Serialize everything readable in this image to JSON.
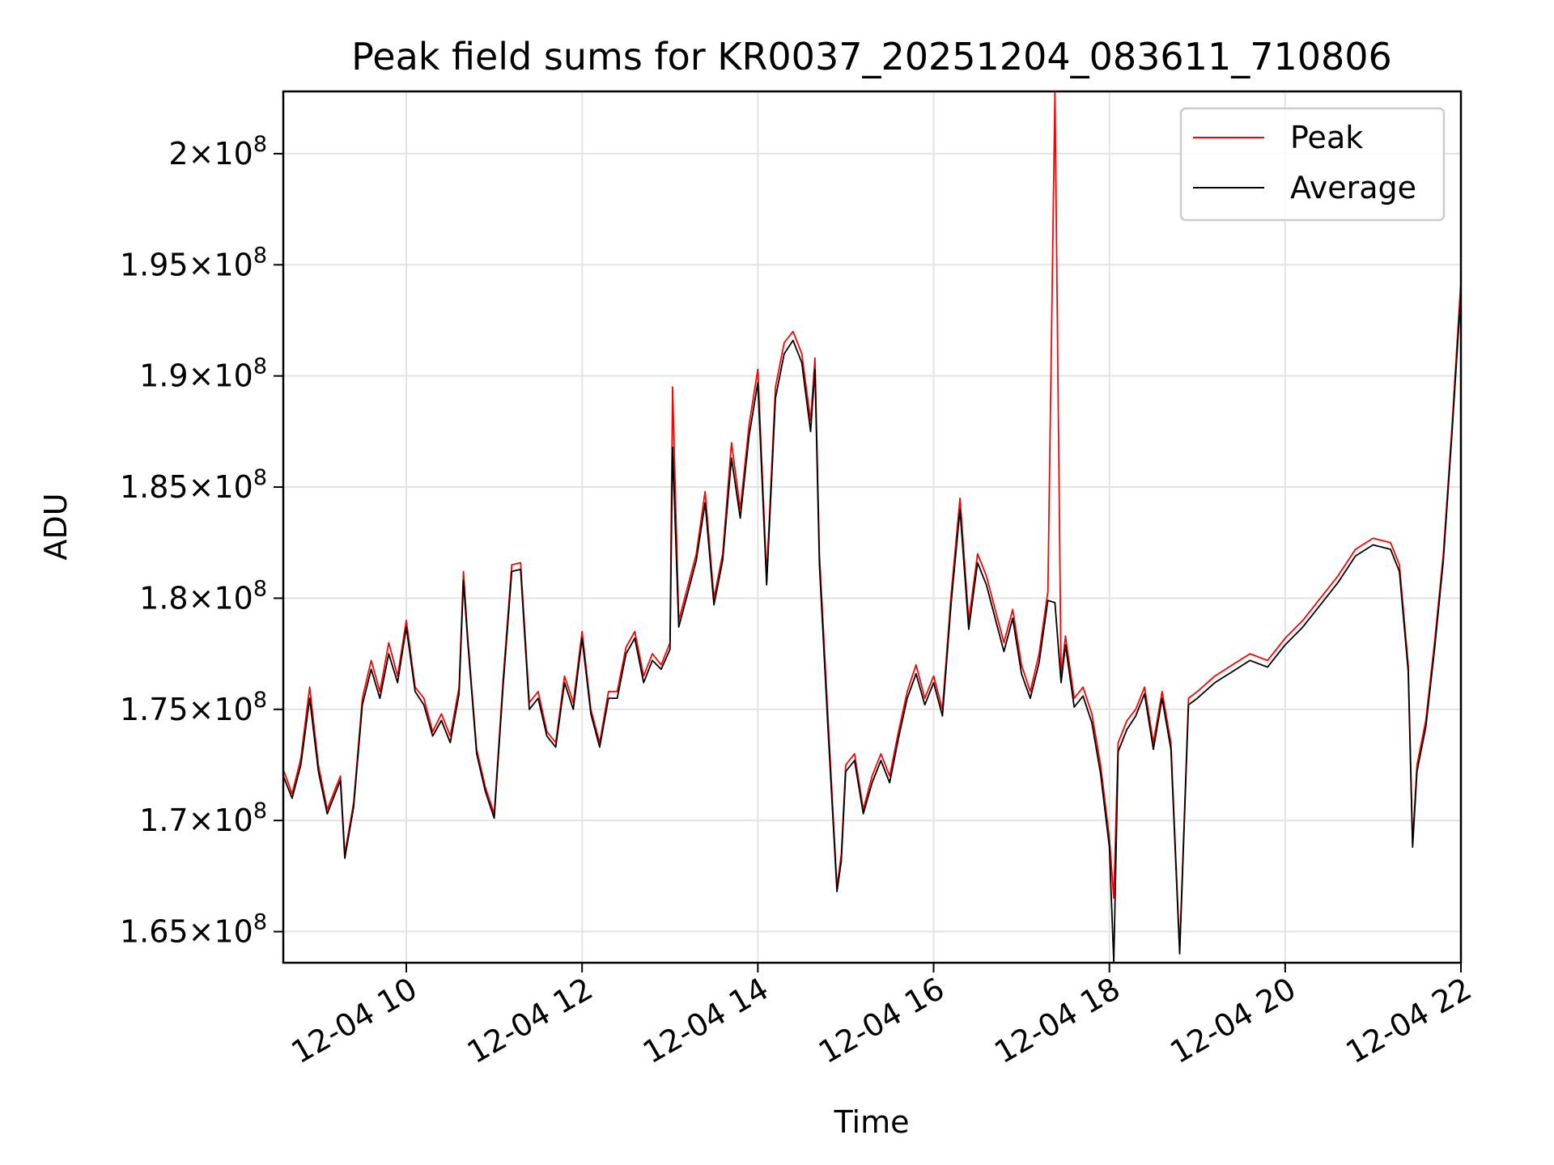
{
  "chart_data": {
    "type": "line",
    "title": "Peak field sums for KR0037_20251204_083611_710806",
    "xlabel": "Time",
    "ylabel": "ADU",
    "grid": true,
    "legend_loc": "upper right",
    "xlim_hours": [
      8.6,
      22.0
    ],
    "ylim": [
      163600000,
      202800000
    ],
    "x_ticks": [
      {
        "hour": 10,
        "label": "12-04 10"
      },
      {
        "hour": 12,
        "label": "12-04 12"
      },
      {
        "hour": 14,
        "label": "12-04 14"
      },
      {
        "hour": 16,
        "label": "12-04 16"
      },
      {
        "hour": 18,
        "label": "12-04 18"
      },
      {
        "hour": 20,
        "label": "12-04 20"
      },
      {
        "hour": 22,
        "label": "12-04 22"
      }
    ],
    "y_ticks": [
      {
        "value": 165000000,
        "mant": "1.65",
        "exp": "8"
      },
      {
        "value": 170000000,
        "mant": "1.7",
        "exp": "8"
      },
      {
        "value": 175000000,
        "mant": "1.75",
        "exp": "8"
      },
      {
        "value": 180000000,
        "mant": "1.8",
        "exp": "8"
      },
      {
        "value": 185000000,
        "mant": "1.85",
        "exp": "8"
      },
      {
        "value": 190000000,
        "mant": "1.9",
        "exp": "8"
      },
      {
        "value": 195000000,
        "mant": "1.95",
        "exp": "8"
      },
      {
        "value": 200000000,
        "mant": "2",
        "exp": "8"
      }
    ],
    "series": [
      {
        "name": "Peak",
        "color": "#ff0000",
        "x": [
          8.6,
          8.7,
          8.8,
          8.9,
          9.0,
          9.1,
          9.2,
          9.25,
          9.3,
          9.4,
          9.5,
          9.6,
          9.7,
          9.8,
          9.9,
          10.0,
          10.1,
          10.2,
          10.3,
          10.4,
          10.5,
          10.6,
          10.65,
          10.7,
          10.8,
          10.9,
          11.0,
          11.1,
          11.2,
          11.3,
          11.4,
          11.5,
          11.6,
          11.7,
          11.8,
          11.9,
          12.0,
          12.1,
          12.2,
          12.3,
          12.4,
          12.5,
          12.6,
          12.7,
          12.8,
          12.9,
          13.0,
          13.03,
          13.1,
          13.2,
          13.3,
          13.4,
          13.5,
          13.6,
          13.7,
          13.8,
          13.9,
          14.0,
          14.1,
          14.2,
          14.3,
          14.4,
          14.5,
          14.6,
          14.65,
          14.7,
          14.8,
          14.9,
          14.95,
          15.0,
          15.1,
          15.2,
          15.3,
          15.4,
          15.5,
          15.6,
          15.7,
          15.8,
          15.9,
          16.0,
          16.1,
          16.2,
          16.3,
          16.4,
          16.5,
          16.6,
          16.7,
          16.8,
          16.9,
          17.0,
          17.1,
          17.2,
          17.3,
          17.38,
          17.45,
          17.5,
          17.6,
          17.7,
          17.8,
          17.9,
          18.0,
          18.05,
          18.1,
          18.2,
          18.3,
          18.4,
          18.5,
          18.6,
          18.7,
          18.8,
          18.9,
          19.0,
          19.2,
          19.4,
          19.6,
          19.8,
          20.0,
          20.2,
          20.4,
          20.6,
          20.8,
          21.0,
          21.2,
          21.3,
          21.4,
          21.45,
          21.5,
          21.6,
          21.7,
          21.8,
          21.9,
          22.0
        ],
        "y": [
          172300000,
          171200000,
          172800000,
          176000000,
          172500000,
          170500000,
          171500000,
          172000000,
          168500000,
          170800000,
          175500000,
          177200000,
          175800000,
          178000000,
          176500000,
          179000000,
          176000000,
          175500000,
          174000000,
          174800000,
          173800000,
          176000000,
          181200000,
          178200000,
          173200000,
          171500000,
          170300000,
          176300000,
          181500000,
          181600000,
          175300000,
          175800000,
          174000000,
          173500000,
          176500000,
          175300000,
          178500000,
          175000000,
          173500000,
          175800000,
          175800000,
          177800000,
          178500000,
          176500000,
          177500000,
          177000000,
          178000000,
          189500000,
          179000000,
          180500000,
          182000000,
          184800000,
          180000000,
          182000000,
          187000000,
          184000000,
          187800000,
          190300000,
          181000000,
          189500000,
          191500000,
          192000000,
          191000000,
          188000000,
          190800000,
          182000000,
          174500000,
          167000000,
          168500000,
          172500000,
          173000000,
          170500000,
          172000000,
          173000000,
          172000000,
          174000000,
          175800000,
          177000000,
          175500000,
          176500000,
          175000000,
          180200000,
          184500000,
          179000000,
          182000000,
          181000000,
          179500000,
          178000000,
          179500000,
          177000000,
          175800000,
          177500000,
          180300000,
          202800000,
          176500000,
          178300000,
          175500000,
          176000000,
          174800000,
          172500000,
          169200000,
          166500000,
          173500000,
          174500000,
          175000000,
          176000000,
          173500000,
          175800000,
          173500000,
          164200000,
          175500000,
          175800000,
          176500000,
          177000000,
          177500000,
          177200000,
          178200000,
          179000000,
          180000000,
          181000000,
          182200000,
          182700000,
          182500000,
          181500000,
          177000000,
          169000000,
          172500000,
          174500000,
          178000000,
          182000000,
          187800000,
          194300000
        ]
      },
      {
        "name": "Average",
        "color": "#000000",
        "x": [
          8.6,
          8.7,
          8.8,
          8.9,
          9.0,
          9.1,
          9.2,
          9.25,
          9.3,
          9.4,
          9.5,
          9.6,
          9.7,
          9.8,
          9.9,
          10.0,
          10.1,
          10.2,
          10.3,
          10.4,
          10.5,
          10.6,
          10.65,
          10.7,
          10.8,
          10.9,
          11.0,
          11.1,
          11.2,
          11.3,
          11.4,
          11.5,
          11.6,
          11.7,
          11.8,
          11.9,
          12.0,
          12.1,
          12.2,
          12.3,
          12.4,
          12.5,
          12.6,
          12.7,
          12.8,
          12.9,
          13.0,
          13.03,
          13.1,
          13.2,
          13.3,
          13.4,
          13.5,
          13.6,
          13.7,
          13.8,
          13.9,
          14.0,
          14.1,
          14.2,
          14.3,
          14.4,
          14.5,
          14.6,
          14.65,
          14.7,
          14.8,
          14.9,
          14.95,
          15.0,
          15.1,
          15.2,
          15.3,
          15.4,
          15.5,
          15.6,
          15.7,
          15.8,
          15.9,
          16.0,
          16.1,
          16.2,
          16.3,
          16.4,
          16.5,
          16.6,
          16.7,
          16.8,
          16.9,
          17.0,
          17.1,
          17.2,
          17.3,
          17.38,
          17.45,
          17.5,
          17.6,
          17.7,
          17.8,
          17.9,
          18.0,
          18.05,
          18.1,
          18.2,
          18.3,
          18.4,
          18.5,
          18.6,
          18.7,
          18.8,
          18.9,
          19.0,
          19.2,
          19.4,
          19.6,
          19.8,
          20.0,
          20.2,
          20.4,
          20.6,
          20.8,
          21.0,
          21.2,
          21.3,
          21.4,
          21.45,
          21.5,
          21.6,
          21.7,
          21.8,
          21.9,
          22.0
        ],
        "y": [
          172000000,
          171000000,
          172500000,
          175500000,
          172200000,
          170300000,
          171300000,
          171800000,
          168300000,
          170600000,
          175200000,
          176800000,
          175500000,
          177500000,
          176200000,
          178700000,
          175800000,
          175200000,
          173800000,
          174500000,
          173500000,
          175700000,
          180800000,
          178000000,
          173000000,
          171300000,
          170100000,
          176000000,
          181200000,
          181300000,
          175000000,
          175500000,
          173800000,
          173300000,
          176200000,
          175000000,
          178200000,
          174800000,
          173300000,
          175500000,
          175500000,
          177500000,
          178200000,
          176200000,
          177200000,
          176800000,
          177700000,
          186800000,
          178700000,
          180200000,
          181700000,
          184300000,
          179700000,
          181700000,
          186300000,
          183600000,
          187300000,
          189700000,
          180600000,
          189000000,
          191000000,
          191600000,
          190600000,
          187500000,
          190300000,
          181500000,
          174000000,
          166800000,
          168200000,
          172200000,
          172700000,
          170300000,
          171700000,
          172700000,
          171700000,
          173700000,
          175500000,
          176600000,
          175200000,
          176200000,
          174700000,
          179800000,
          184000000,
          178600000,
          181600000,
          180600000,
          179100000,
          177600000,
          179100000,
          176600000,
          175500000,
          177100000,
          179900000,
          179800000,
          176200000,
          177900000,
          175100000,
          175600000,
          174400000,
          172100000,
          168800000,
          163600000,
          173100000,
          174100000,
          174700000,
          175700000,
          173200000,
          175500000,
          173200000,
          164000000,
          175200000,
          175500000,
          176200000,
          176700000,
          177200000,
          176900000,
          177900000,
          178700000,
          179700000,
          180700000,
          181900000,
          182400000,
          182200000,
          181200000,
          176700000,
          168800000,
          172200000,
          174200000,
          177700000,
          181700000,
          187500000,
          193800000
        ]
      }
    ]
  }
}
